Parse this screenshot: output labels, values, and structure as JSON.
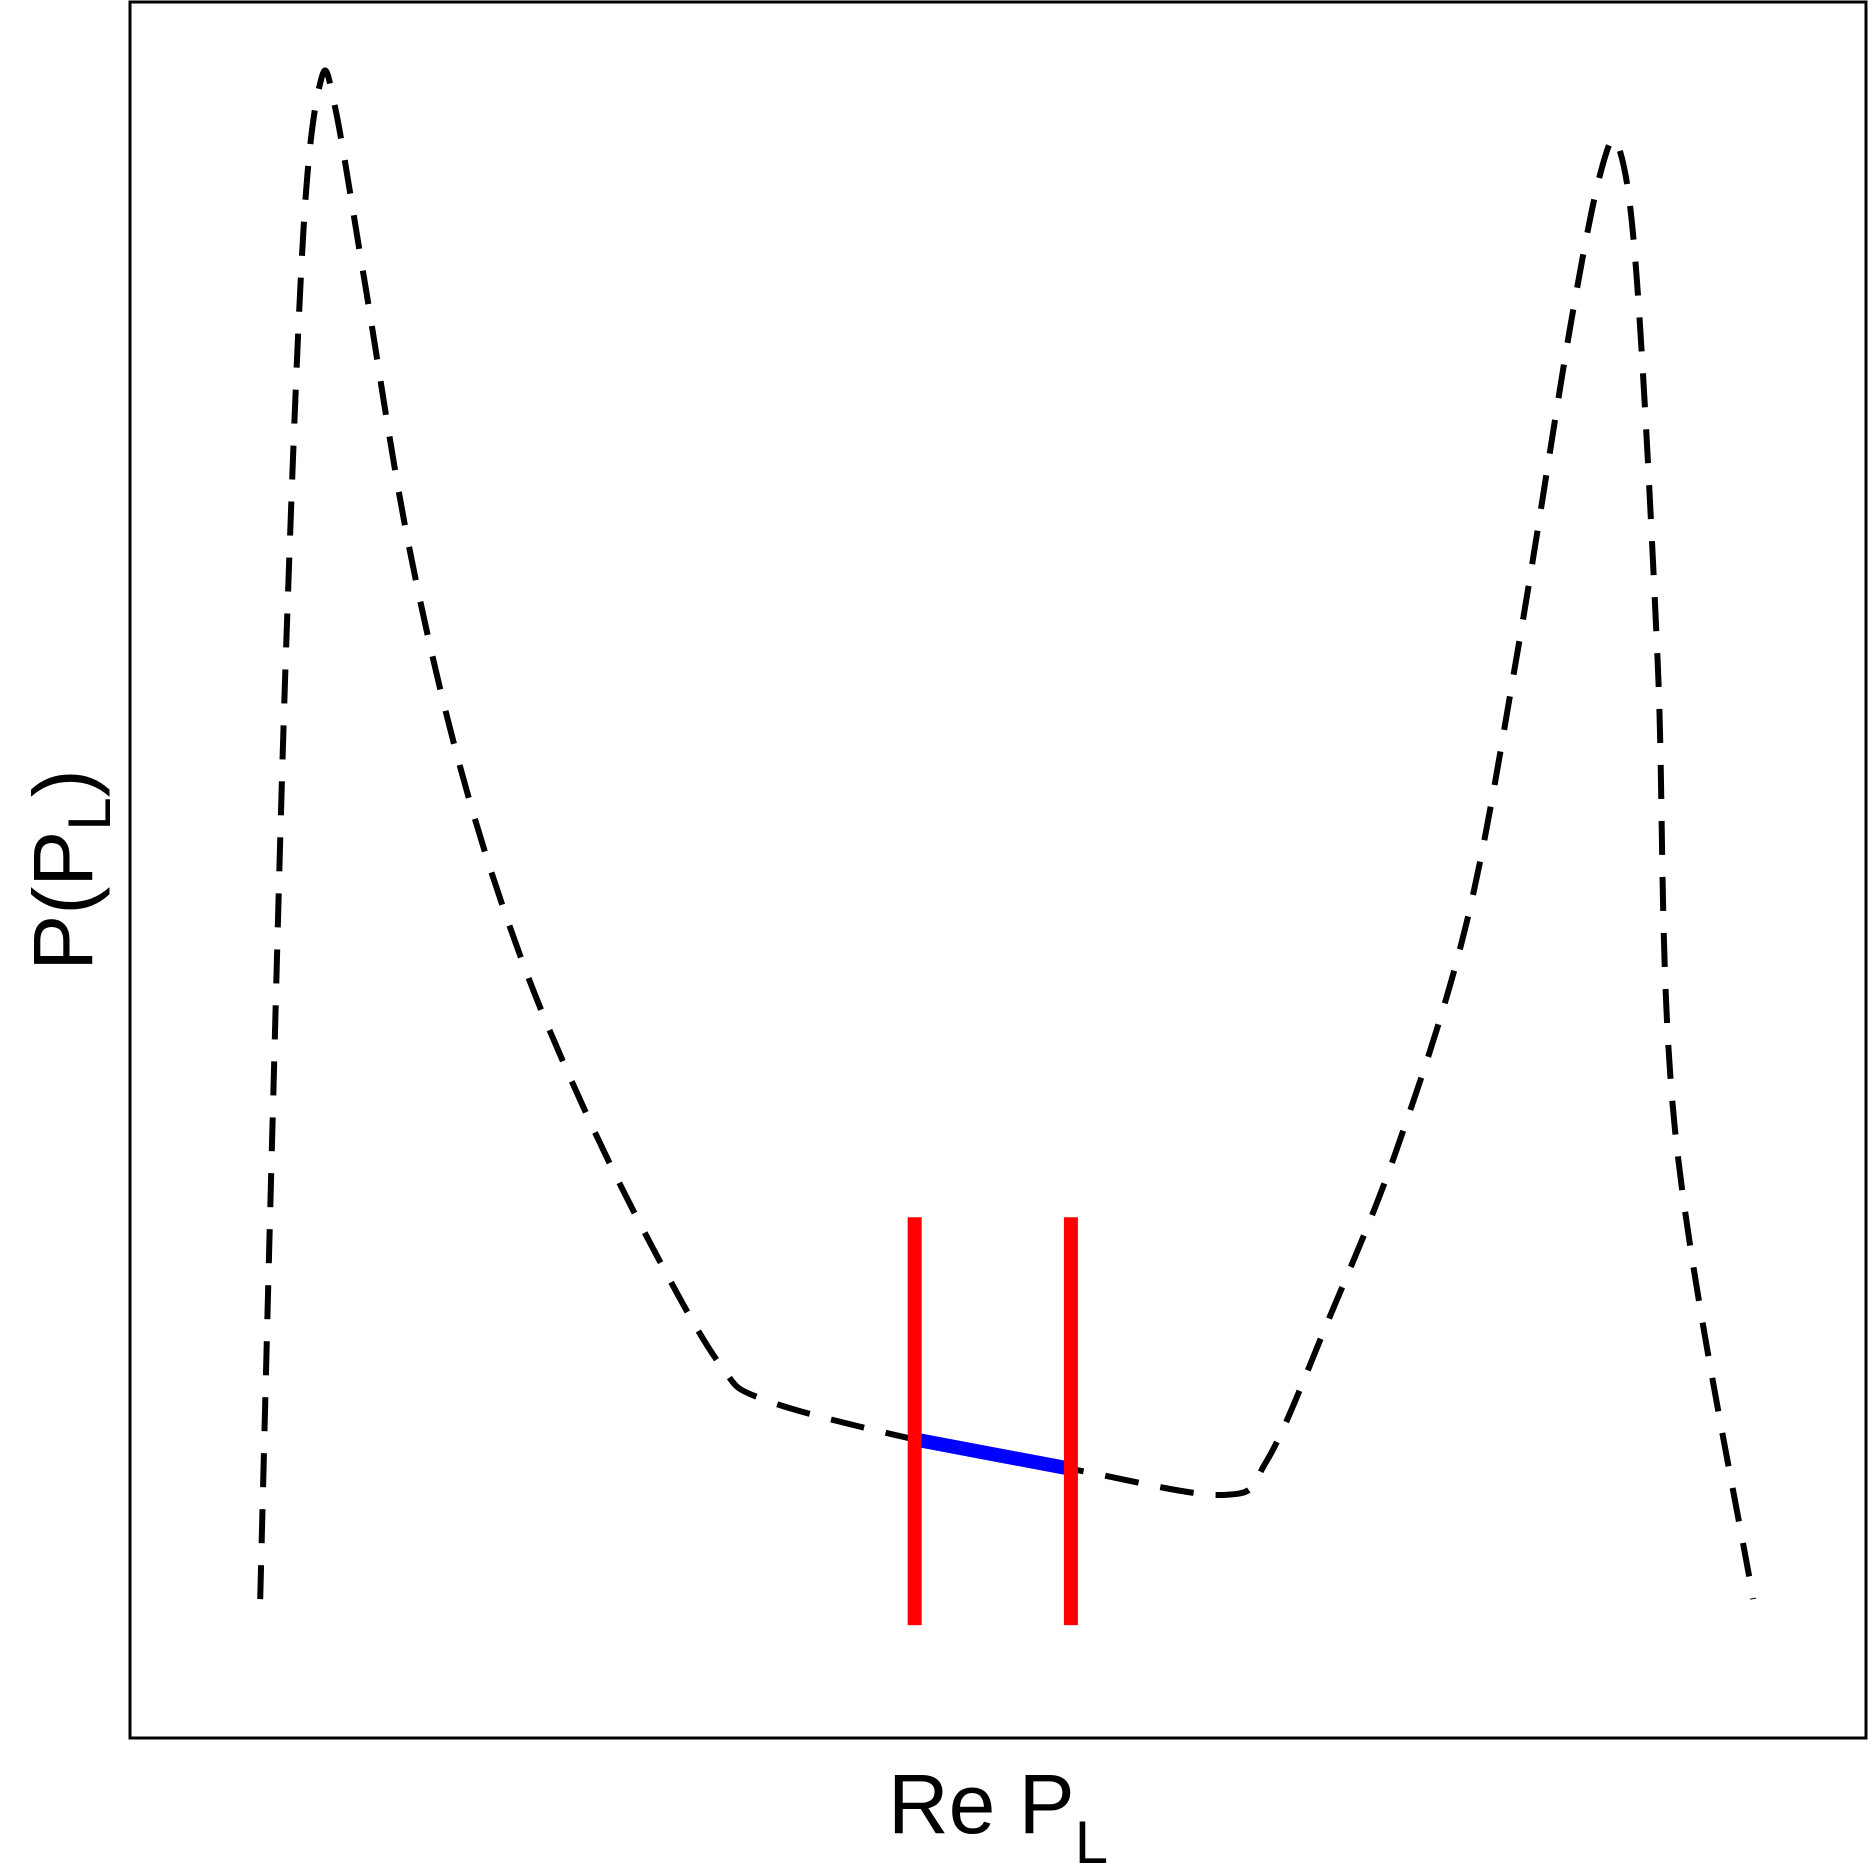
{
  "chart_data": {
    "type": "line",
    "title": "",
    "xlabel": {
      "base": "Re P",
      "subscript": "L"
    },
    "ylabel": {
      "base": "P(P",
      "subscript": "L",
      "suffix": ")"
    },
    "xlim": [
      0,
      1
    ],
    "ylim": [
      0,
      1
    ],
    "grid": false,
    "ticks": false,
    "series": [
      {
        "style": "dashed",
        "color": "#000000",
        "points": [
          [
            0.075,
            0.08
          ],
          [
            0.082,
            0.35
          ],
          [
            0.09,
            0.63
          ],
          [
            0.1,
            0.87
          ],
          [
            0.11,
            0.955
          ],
          [
            0.118,
            0.94
          ],
          [
            0.135,
            0.84
          ],
          [
            0.16,
            0.69
          ],
          [
            0.19,
            0.56
          ],
          [
            0.225,
            0.45
          ],
          [
            0.265,
            0.355
          ],
          [
            0.305,
            0.275
          ],
          [
            0.34,
            0.215
          ],
          [
            0.365,
            0.195
          ],
          [
            0.452,
            0.172
          ],
          [
            0.542,
            0.155
          ],
          [
            0.63,
            0.14
          ],
          [
            0.655,
            0.16
          ],
          [
            0.69,
            0.24
          ],
          [
            0.73,
            0.34
          ],
          [
            0.77,
            0.47
          ],
          [
            0.8,
            0.63
          ],
          [
            0.83,
            0.815
          ],
          [
            0.848,
            0.905
          ],
          [
            0.858,
            0.915
          ],
          [
            0.868,
            0.84
          ],
          [
            0.88,
            0.62
          ],
          [
            0.89,
            0.35
          ],
          [
            0.935,
            0.08
          ]
        ]
      },
      {
        "style": "solid",
        "color": "#0000ff",
        "points": [
          [
            0.452,
            0.172
          ],
          [
            0.542,
            0.155
          ]
        ]
      }
    ],
    "vlines": [
      {
        "x": 0.452,
        "y": [
          0.065,
          0.3
        ],
        "color": "#ff0000"
      },
      {
        "x": 0.542,
        "y": [
          0.065,
          0.3
        ],
        "color": "#ff0000"
      }
    ]
  }
}
